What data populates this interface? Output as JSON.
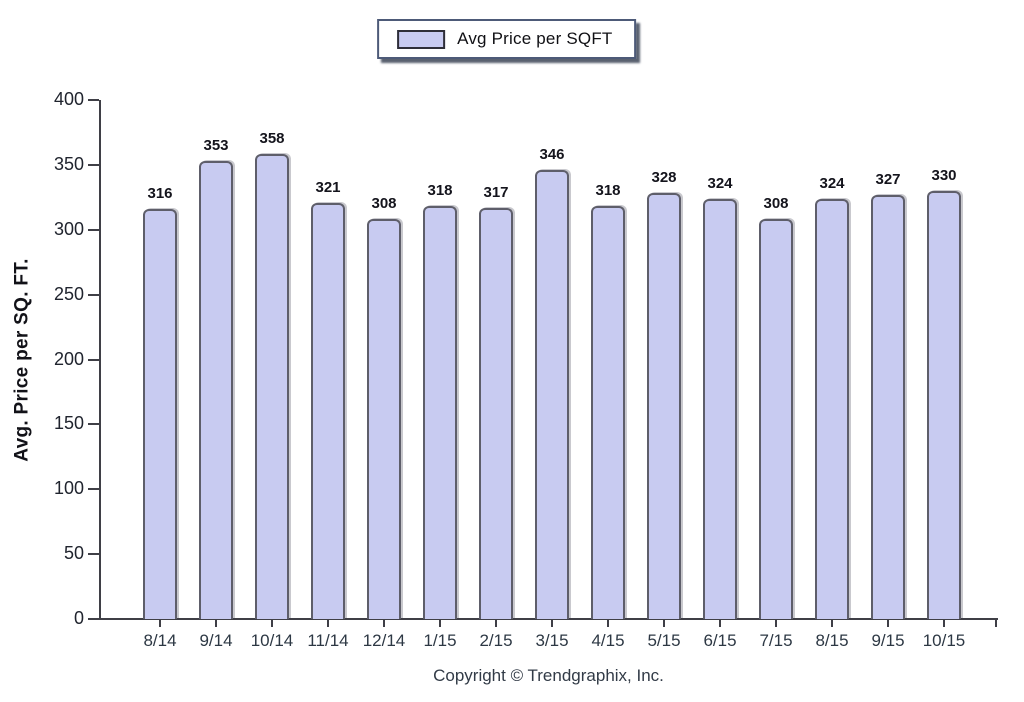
{
  "legend": {
    "label": "Avg Price per SQFT"
  },
  "footer": {
    "copyright": "Copyright © Trendgraphix, Inc."
  },
  "chart_data": {
    "type": "bar",
    "title": "Avg Price per SQFT",
    "categories": [
      "8/14",
      "9/14",
      "10/14",
      "11/14",
      "12/14",
      "1/15",
      "2/15",
      "3/15",
      "4/15",
      "5/15",
      "6/15",
      "7/15",
      "8/15",
      "9/15",
      "10/15"
    ],
    "values": [
      316,
      353,
      358,
      321,
      308,
      318,
      317,
      346,
      318,
      328,
      324,
      308,
      324,
      327,
      330
    ],
    "xlabel": "",
    "ylabel": "Avg. Price per SQ. FT.",
    "ylim": [
      0,
      400
    ],
    "yticks": [
      0,
      50,
      100,
      150,
      200,
      250,
      300,
      350,
      400
    ],
    "grid": false,
    "value_labels": true,
    "legend_position": "top-center",
    "bar_color": "#c8cbf1",
    "bar_border_color": "#5e5e6a",
    "axis_color": "#3f3f46"
  }
}
